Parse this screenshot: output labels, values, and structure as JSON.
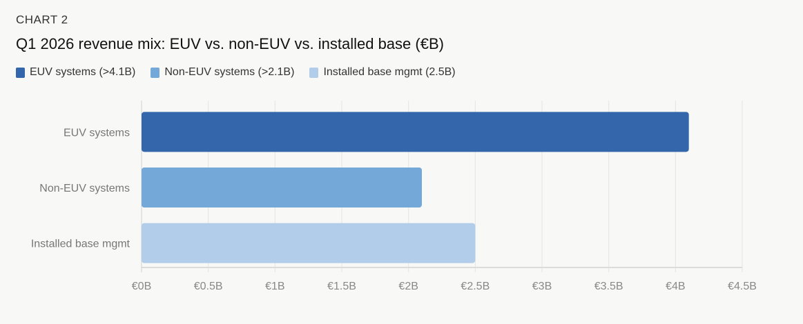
{
  "eyebrow": "CHART 2",
  "chart_data": {
    "type": "bar",
    "orientation": "horizontal",
    "title": "Q1 2026 revenue mix: EUV vs. non-EUV vs. installed base (€B)",
    "categories": [
      "EUV systems",
      "Non-EUV systems",
      "Installed base mgmt"
    ],
    "values": [
      4.1,
      2.1,
      2.5
    ],
    "colors": [
      "#3366aa",
      "#74a8d8",
      "#b2cde9"
    ],
    "legend": [
      {
        "label": "EUV systems (>4.1B)",
        "color": "#3366aa"
      },
      {
        "label": "Non-EUV systems (>2.1B)",
        "color": "#74a8d8"
      },
      {
        "label": "Installed base mgmt (2.5B)",
        "color": "#b2cde9"
      }
    ],
    "legend_position": "top-left",
    "xlim": [
      0,
      4.5
    ],
    "xticks": [
      0,
      0.5,
      1,
      1.5,
      2,
      2.5,
      3,
      3.5,
      4,
      4.5
    ],
    "xtick_labels": [
      "€0B",
      "€0.5B",
      "€1B",
      "€1.5B",
      "€2B",
      "€2.5B",
      "€3B",
      "€3.5B",
      "€4B",
      "€4.5B"
    ],
    "grid": true,
    "xlabel": "",
    "ylabel": ""
  }
}
